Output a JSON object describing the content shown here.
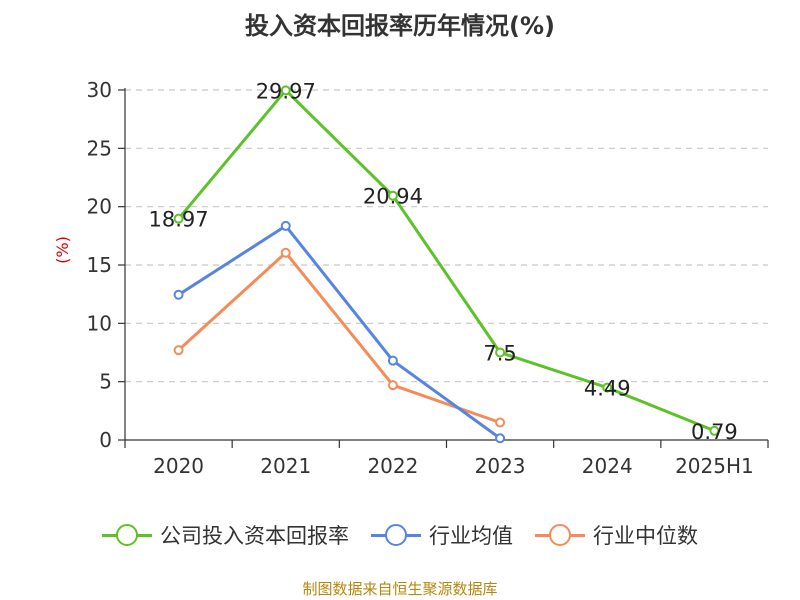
{
  "title": "投入资本回报率历年情况(%)",
  "source": "制图数据来自恒生聚源数据库",
  "colors": {
    "company": "#5cc228",
    "avg": "#5585e0",
    "median": "#f48c5a",
    "grid": "#c8c8c8",
    "axis": "#333333",
    "ylabel": "#dd0000"
  },
  "chart_data": {
    "type": "line",
    "categories": [
      "2020",
      "2021",
      "2022",
      "2023",
      "2024",
      "2025H1"
    ],
    "ylabel": "(%)",
    "xlabel": "",
    "ylim": [
      0,
      30
    ],
    "yticks": [
      0,
      5,
      10,
      15,
      20,
      25,
      30
    ],
    "grid": true,
    "legend_position": "bottom",
    "series": [
      {
        "name": "公司投入资本回报率",
        "values": [
          18.97,
          29.97,
          20.94,
          7.5,
          4.49,
          0.79
        ],
        "labels": [
          "18.97",
          "29.97",
          "20.94",
          "7.5",
          "4.49",
          "0.79"
        ],
        "color": "#5cc228"
      },
      {
        "name": "行业均值",
        "values": [
          12.45,
          18.35,
          6.8,
          0.15,
          null,
          null
        ],
        "color": "#5585e0"
      },
      {
        "name": "行业中位数",
        "values": [
          7.7,
          16.05,
          4.7,
          1.5,
          null,
          null
        ],
        "color": "#f48c5a"
      }
    ]
  }
}
